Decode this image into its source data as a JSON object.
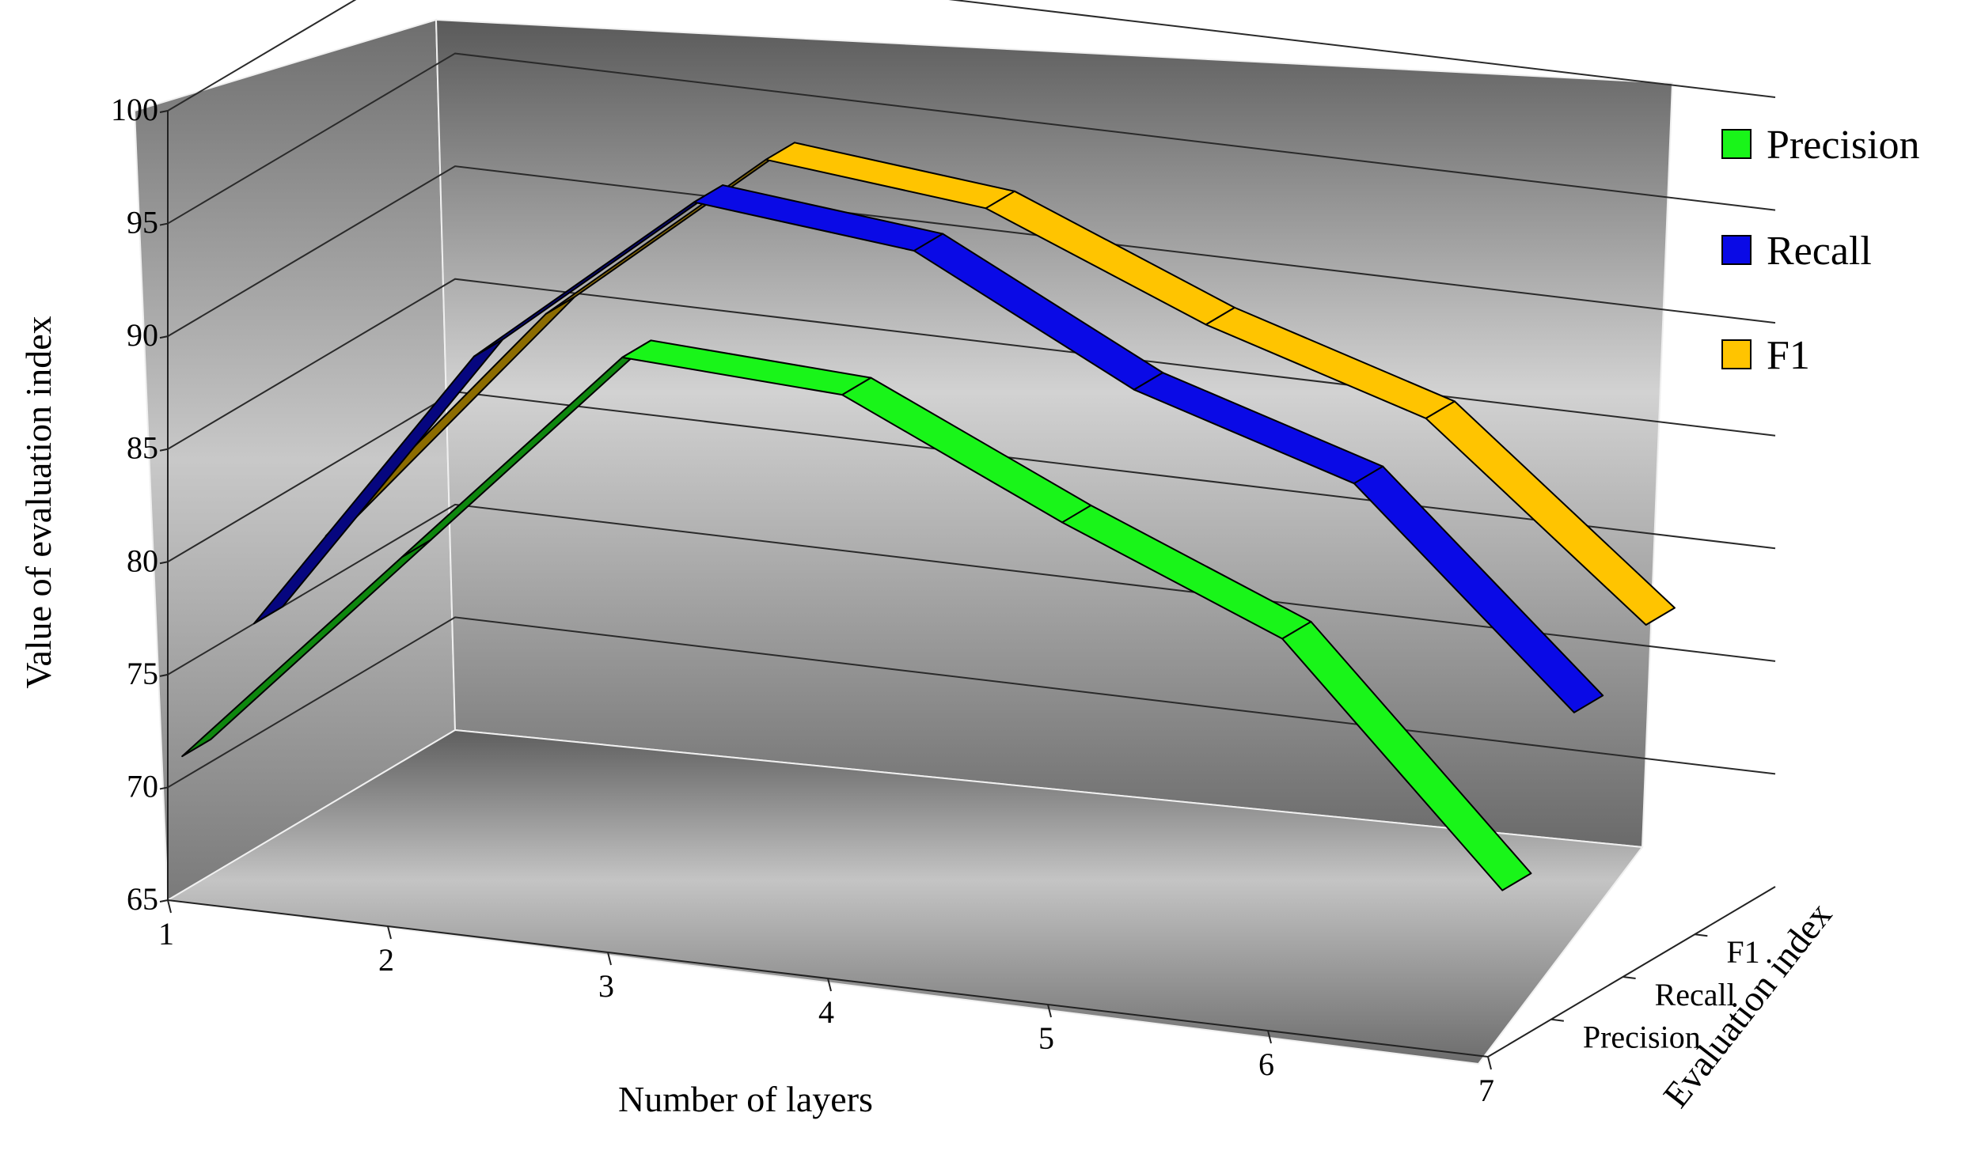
{
  "chart_data": {
    "type": "line",
    "style": "3d-ribbon",
    "x": [
      1,
      2,
      3,
      4,
      5,
      6,
      7
    ],
    "series": [
      {
        "name": "Precision",
        "values": [
          71,
          81,
          91,
          90.5,
          86,
          82,
          72
        ],
        "color": "#19f519"
      },
      {
        "name": "Recall",
        "values": [
          75,
          88,
          96,
          95,
          90,
          87,
          78
        ],
        "color": "#0a0ae6"
      },
      {
        "name": "F1",
        "values": [
          77,
          88,
          96,
          95,
          91,
          88,
          80
        ],
        "color": "#ffc400"
      }
    ],
    "xlabel": "Number of layers",
    "ylabel": "Value of evaluation index",
    "zlabel": "Evaluation index",
    "y_ticks": [
      "100",
      "95",
      "90",
      "85",
      "80",
      "75",
      "70",
      "65"
    ],
    "x_ticks": [
      "1",
      "2",
      "3",
      "4",
      "5",
      "6",
      "7"
    ],
    "z_ticks": [
      "F1",
      "Recall",
      "Precision"
    ],
    "ylim": [
      65,
      100
    ],
    "grid": true,
    "legend": "right",
    "wall_color": "#7a7a7a",
    "floor_color": "#8c8c8c"
  }
}
